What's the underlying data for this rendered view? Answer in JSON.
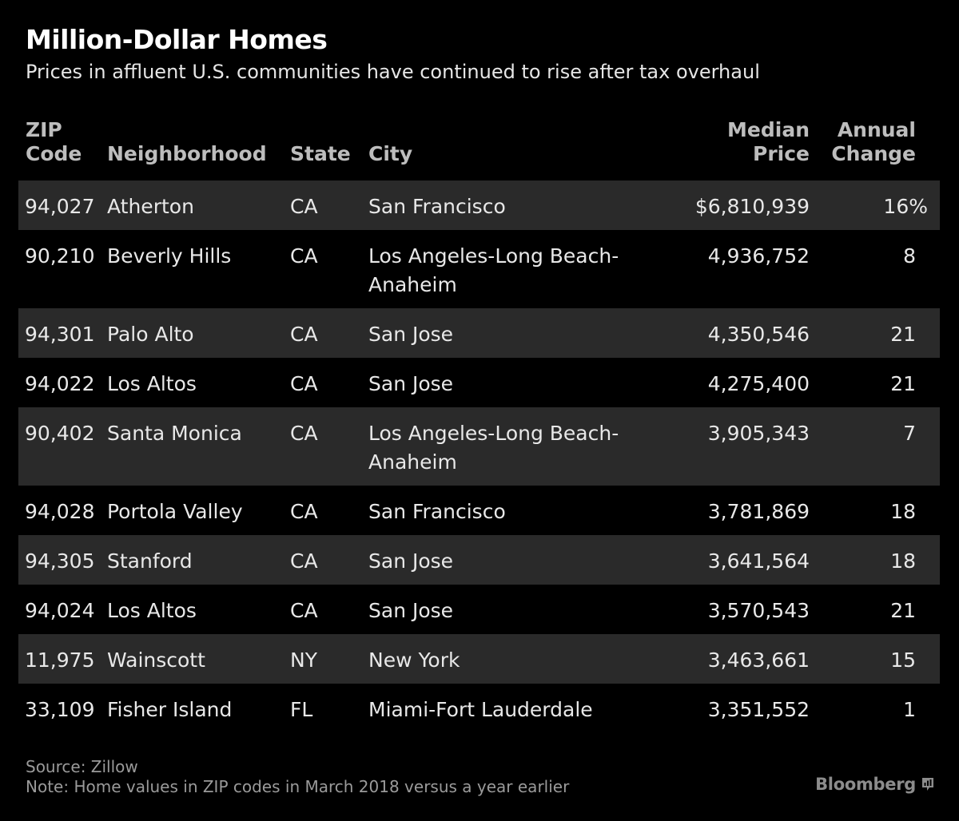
{
  "header": {
    "title": "Million-Dollar Homes",
    "subtitle": "Prices in affluent U.S. communities have continued to rise after tax overhaul"
  },
  "table": {
    "columns": {
      "zip": [
        "ZIP",
        "Code"
      ],
      "neighborhood": "Neighborhood",
      "state": "State",
      "city": "City",
      "price": [
        "Median",
        "Price"
      ],
      "change": [
        "Annual",
        "Change"
      ]
    }
  },
  "chart_data": {
    "type": "table",
    "title": "Million-Dollar Homes",
    "subtitle": "Prices in affluent U.S. communities have continued to rise after tax overhaul",
    "columns": [
      "ZIP Code",
      "Neighborhood",
      "State",
      "City",
      "Median Price",
      "Annual Change"
    ],
    "rows": [
      {
        "zip": "94,027",
        "neighborhood": "Atherton",
        "state": "CA",
        "city": "San Francisco",
        "price": "$6,810,939",
        "change": "16%"
      },
      {
        "zip": "90,210",
        "neighborhood": "Beverly Hills",
        "state": "CA",
        "city": "Los Angeles-Long Beach-Anaheim",
        "price": "4,936,752",
        "change": "8"
      },
      {
        "zip": "94,301",
        "neighborhood": "Palo Alto",
        "state": "CA",
        "city": "San Jose",
        "price": "4,350,546",
        "change": "21"
      },
      {
        "zip": "94,022",
        "neighborhood": "Los Altos",
        "state": "CA",
        "city": "San Jose",
        "price": "4,275,400",
        "change": "21"
      },
      {
        "zip": "90,402",
        "neighborhood": "Santa Monica",
        "state": "CA",
        "city": "Los Angeles-Long Beach-Anaheim",
        "price": "3,905,343",
        "change": "7"
      },
      {
        "zip": "94,028",
        "neighborhood": "Portola Valley",
        "state": "CA",
        "city": "San Francisco",
        "price": "3,781,869",
        "change": "18"
      },
      {
        "zip": "94,305",
        "neighborhood": "Stanford",
        "state": "CA",
        "city": "San Jose",
        "price": "3,641,564",
        "change": "18"
      },
      {
        "zip": "94,024",
        "neighborhood": "Los Altos",
        "state": "CA",
        "city": "San Jose",
        "price": "3,570,543",
        "change": "21"
      },
      {
        "zip": "11,975",
        "neighborhood": "Wainscott",
        "state": "NY",
        "city": "New York",
        "price": "3,463,661",
        "change": "15"
      },
      {
        "zip": "33,109",
        "neighborhood": "Fisher Island",
        "state": "FL",
        "city": "Miami-Fort Lauderdale",
        "price": "3,351,552",
        "change": "1"
      }
    ]
  },
  "footer": {
    "source": "Source: Zillow",
    "note": "Note: Home values in ZIP codes in March 2018 versus a year earlier",
    "brand": "Bloomberg",
    "brand_icon": "bloomberg-chart-icon"
  },
  "colors": {
    "background": "#000000",
    "row_shade": "#2a2a2a",
    "header_text": "#bdbdbd",
    "body_text": "#e8e8e8"
  }
}
